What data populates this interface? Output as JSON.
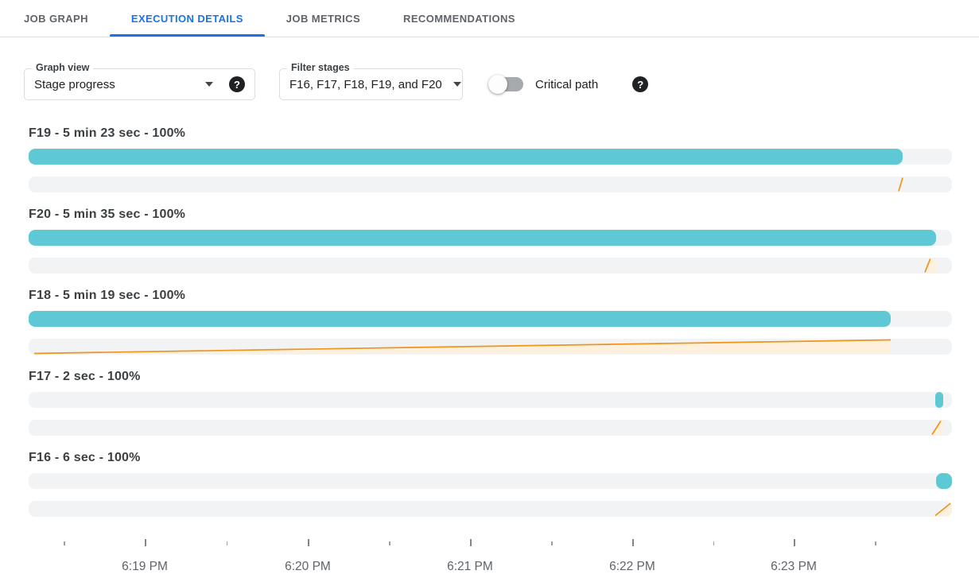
{
  "tabs": [
    {
      "label": "JOB GRAPH",
      "active": false
    },
    {
      "label": "EXECUTION DETAILS",
      "active": true
    },
    {
      "label": "JOB METRICS",
      "active": false
    },
    {
      "label": "RECOMMENDATIONS",
      "active": false
    }
  ],
  "controls": {
    "graph_view": {
      "label": "Graph view",
      "value": "Stage progress"
    },
    "filter_stages": {
      "label": "Filter stages",
      "value": "F16, F17, F18, F19, and F20"
    },
    "critical_path": {
      "label": "Critical path",
      "enabled": false
    }
  },
  "icons": {
    "help_glyph": "?"
  },
  "stages": [
    {
      "id": "F19",
      "title": "F19 - 5 min 23 sec - 100%",
      "duration": "5 min 23 sec",
      "progress_percent": "100%",
      "bar": {
        "start_pct": 0,
        "end_pct": 94.66
      },
      "spark": {
        "x1_pct": 94.23,
        "x2_pct": 94.66,
        "fill_end_pct": null
      }
    },
    {
      "id": "F20",
      "title": "F20 - 5 min 35 sec - 100%",
      "duration": "5 min 35 sec",
      "progress_percent": "100%",
      "bar": {
        "start_pct": 0,
        "end_pct": 98.28
      },
      "spark": {
        "x1_pct": 97.07,
        "x2_pct": 97.65,
        "fill_end_pct": 98.28
      }
    },
    {
      "id": "F18",
      "title": "F18 - 5 min 19 sec - 100%",
      "duration": "5 min 19 sec",
      "progress_percent": "100%",
      "bar": {
        "start_pct": 0,
        "end_pct": 93.37
      },
      "spark": {
        "x1_pct": 0.6,
        "x2_pct": 93.37,
        "fill_end_pct": 93.37
      }
    },
    {
      "id": "F17",
      "title": "F17 - 2 sec - 100%",
      "duration": "2 sec",
      "progress_percent": "100%",
      "bar": {
        "start_pct": 98.19,
        "end_pct": 99.05
      },
      "spark": {
        "x1_pct": 97.85,
        "x2_pct": 98.79,
        "fill_end_pct": 99.05
      }
    },
    {
      "id": "F16",
      "title": "F16 - 6 sec - 100%",
      "duration": "6 sec",
      "progress_percent": "100%",
      "bar": {
        "start_pct": 98.28,
        "end_pct": 100
      },
      "spark": {
        "x1_pct": 98.19,
        "x2_pct": 100,
        "fill_end_pct": 100
      }
    }
  ],
  "axis": {
    "ticks": [
      {
        "pos_pct": 3.79,
        "type": "minor"
      },
      {
        "pos_pct": 12.58,
        "type": "major"
      },
      {
        "pos_pct": 21.41,
        "type": "minor"
      },
      {
        "pos_pct": 30.23,
        "type": "major"
      },
      {
        "pos_pct": 39.02,
        "type": "minor"
      },
      {
        "pos_pct": 47.8,
        "type": "major"
      },
      {
        "pos_pct": 56.59,
        "type": "minor"
      },
      {
        "pos_pct": 65.37,
        "type": "major"
      },
      {
        "pos_pct": 74.16,
        "type": "minor"
      },
      {
        "pos_pct": 82.86,
        "type": "major"
      },
      {
        "pos_pct": 91.68,
        "type": "minor"
      }
    ],
    "labels": [
      {
        "pos_pct": 12.58,
        "text": "6:19 PM"
      },
      {
        "pos_pct": 30.23,
        "text": "6:20 PM"
      },
      {
        "pos_pct": 47.8,
        "text": "6:21 PM"
      },
      {
        "pos_pct": 65.37,
        "text": "6:22 PM"
      },
      {
        "pos_pct": 82.86,
        "text": "6:23 PM"
      }
    ]
  },
  "colors": {
    "accent_blue": "#1a73e8",
    "progress_teal": "#5ec9d5",
    "critical_orange": "#f0941e",
    "critical_orange_fill": "#fdf1de",
    "bar_track": "#f1f3f4"
  }
}
